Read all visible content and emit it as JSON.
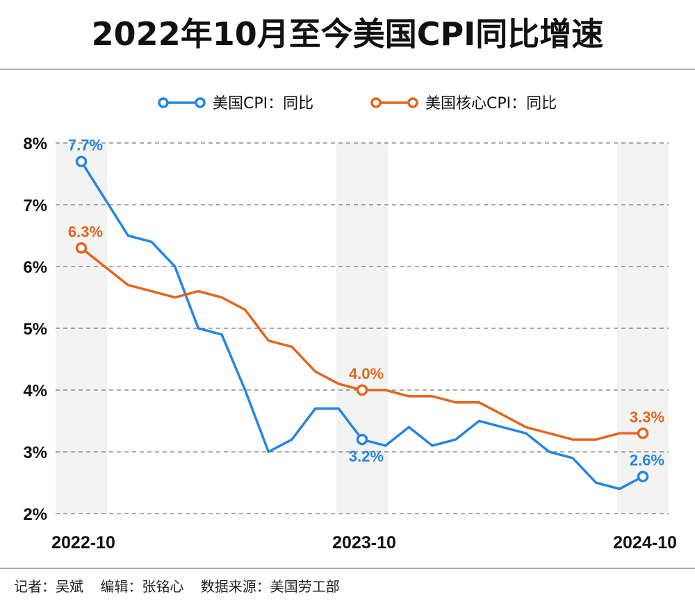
{
  "title": "2022年10月至今美国CPI同比增速",
  "footer": {
    "reporter": "记者：吴斌",
    "editor": "编辑：张铭心",
    "source": "数据来源：美国劳工部"
  },
  "chart_data": {
    "type": "line",
    "title": "2022年10月至今美国CPI同比增速",
    "legend_position": "top",
    "grid": "horizontal dashed",
    "ylim": [
      2,
      8
    ],
    "yticks": [
      "2%",
      "3%",
      "4%",
      "5%",
      "6%",
      "7%",
      "8%"
    ],
    "ytick_values": [
      2,
      3,
      4,
      5,
      6,
      7,
      8
    ],
    "x": [
      "2022-10",
      "2022-11",
      "2022-12",
      "2023-01",
      "2023-02",
      "2023-03",
      "2023-04",
      "2023-05",
      "2023-06",
      "2023-07",
      "2023-08",
      "2023-09",
      "2023-10",
      "2023-11",
      "2023-12",
      "2024-01",
      "2024-02",
      "2024-03",
      "2024-04",
      "2024-05",
      "2024-06",
      "2024-07",
      "2024-08",
      "2024-09",
      "2024-10"
    ],
    "xtick_labels": [
      "2022-10",
      "2023-10",
      "2024-10"
    ],
    "highlighted_periods": [
      "2022-10",
      "2023-10",
      "2024-10"
    ],
    "series": [
      {
        "name": "美国CPI：同比",
        "color": "#2585e0",
        "values": [
          7.7,
          7.1,
          6.5,
          6.4,
          6.0,
          5.0,
          4.9,
          4.0,
          3.0,
          3.2,
          3.7,
          3.7,
          3.2,
          3.1,
          3.4,
          3.1,
          3.2,
          3.5,
          3.4,
          3.3,
          3.0,
          2.9,
          2.5,
          2.4,
          2.6
        ],
        "labels": [
          {
            "x": "2022-10",
            "text": "7.7%",
            "pos": "above"
          },
          {
            "x": "2023-10",
            "text": "3.2%",
            "pos": "below"
          },
          {
            "x": "2024-10",
            "text": "2.6%",
            "pos": "above"
          }
        ]
      },
      {
        "name": "美国核心CPI：同比",
        "color": "#e2661c",
        "values": [
          6.3,
          6.0,
          5.7,
          5.6,
          5.5,
          5.6,
          5.5,
          5.3,
          4.8,
          4.7,
          4.3,
          4.1,
          4.0,
          4.0,
          3.9,
          3.9,
          3.8,
          3.8,
          3.6,
          3.4,
          3.3,
          3.2,
          3.2,
          3.3,
          3.3
        ],
        "labels": [
          {
            "x": "2022-10",
            "text": "6.3%",
            "pos": "above"
          },
          {
            "x": "2023-10",
            "text": "4.0%",
            "pos": "above"
          },
          {
            "x": "2024-10",
            "text": "3.3%",
            "pos": "above"
          }
        ]
      }
    ]
  }
}
